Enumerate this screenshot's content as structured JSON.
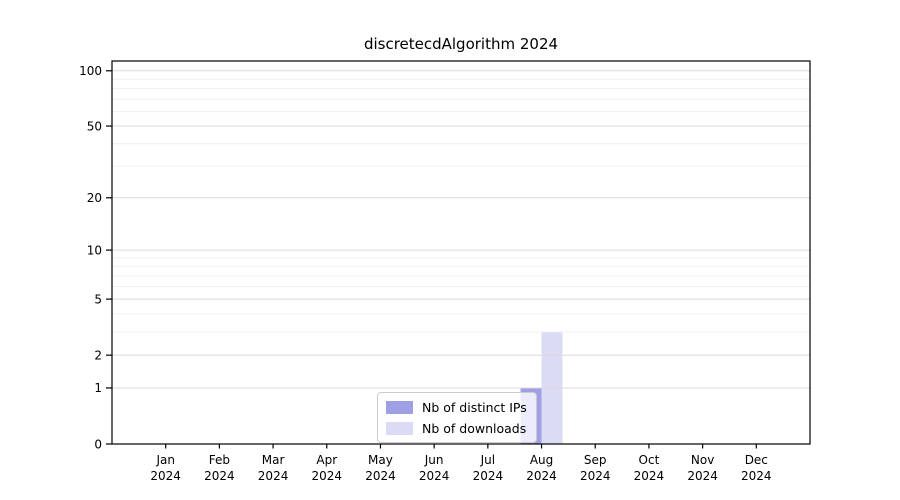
{
  "title": "discretecdAlgorithm 2024",
  "chart_data": {
    "type": "bar",
    "title": "discretecdAlgorithm 2024",
    "categories": [
      "Jan",
      "Feb",
      "Mar",
      "Apr",
      "May",
      "Jun",
      "Jul",
      "Aug",
      "Sep",
      "Oct",
      "Nov",
      "Dec"
    ],
    "year_label": "2024",
    "series": [
      {
        "name": "Nb of distinct IPs",
        "color": "#9f9fe6",
        "values": [
          0,
          0,
          0,
          0,
          0,
          0,
          0,
          1,
          0,
          0,
          0,
          0
        ]
      },
      {
        "name": "Nb of downloads",
        "color": "#dbdbf6",
        "values": [
          0,
          0,
          0,
          0,
          0,
          0,
          0,
          3,
          0,
          0,
          0,
          0
        ]
      }
    ],
    "yscale": "log1p",
    "ylim": [
      0,
      113
    ],
    "ytick_labels": [
      0,
      1,
      2,
      5,
      10,
      20,
      50,
      100
    ],
    "minor_gridlines": [
      3,
      4,
      6,
      7,
      8,
      9,
      30,
      40,
      60,
      70,
      80,
      90
    ],
    "grid": true,
    "legend_position": "lower-center-inside",
    "colors": {
      "major_grid": "#d9d9d9",
      "minor_grid": "#f0f0f0",
      "axis": "#000000",
      "tick_label": "#000000",
      "background": "#ffffff"
    }
  }
}
